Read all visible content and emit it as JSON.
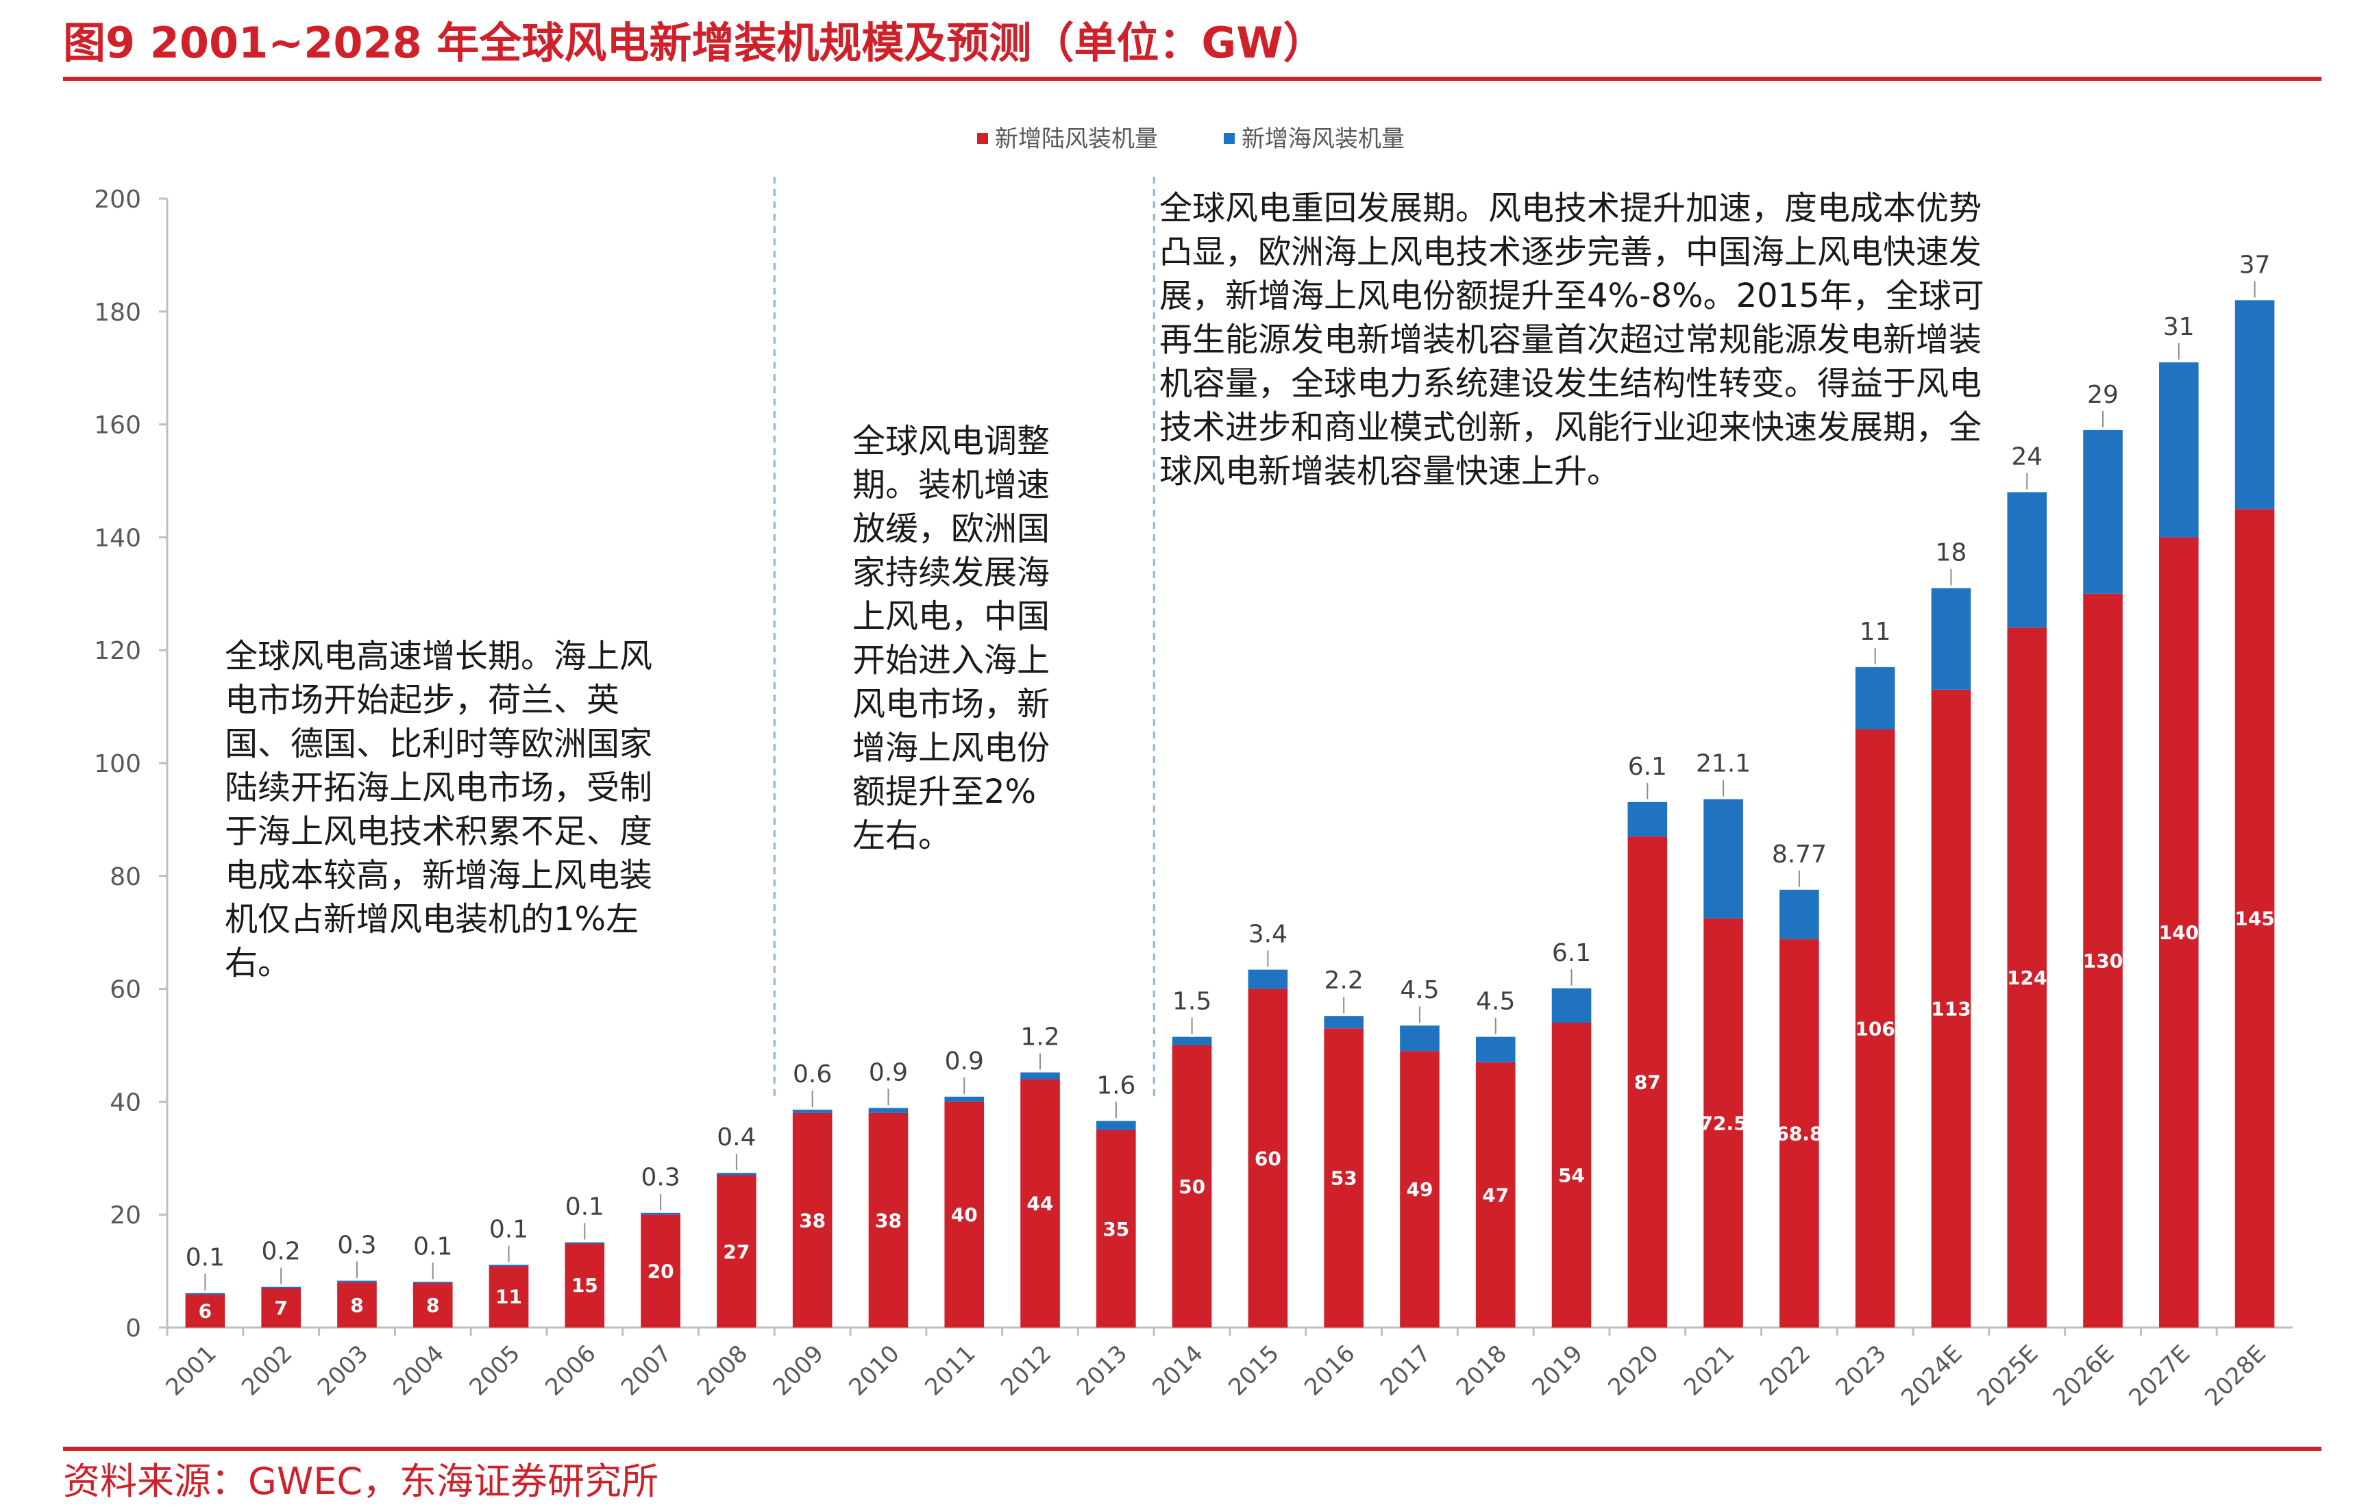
{
  "figure": {
    "title": "图9  2001~2028 年全球风电新增装机规模及预测（单位：GW）",
    "source": "资料来源：GWEC，东海证券研究所"
  },
  "colors": {
    "onshore": "#d0202a",
    "offshore": "#1f73c1",
    "title": "#d0202a",
    "axis": "#bfbfbf",
    "divider": "#8fb3d9"
  },
  "chart_data": {
    "type": "bar",
    "stacked": true,
    "categories": [
      "2001",
      "2002",
      "2003",
      "2004",
      "2005",
      "2006",
      "2007",
      "2008",
      "2009",
      "2010",
      "2011",
      "2012",
      "2013",
      "2014",
      "2015",
      "2016",
      "2017",
      "2018",
      "2019",
      "2020",
      "2021",
      "2022",
      "2023",
      "2024E",
      "2025E",
      "2026E",
      "2027E",
      "2028E"
    ],
    "series": [
      {
        "name": "新增陆风装机量",
        "values": [
          6,
          7,
          8,
          8,
          11,
          15,
          20,
          27,
          38,
          38,
          40,
          44,
          35,
          50,
          60,
          53,
          49,
          47,
          54,
          87,
          72.5,
          68.8,
          106,
          113,
          124,
          130,
          140,
          145
        ],
        "labels": [
          "6",
          "7",
          "8",
          "8",
          "11",
          "15",
          "20",
          "27",
          "38",
          "38",
          "40",
          "44",
          "35",
          "50",
          "60",
          "53",
          "49",
          "47",
          "54",
          "87",
          "72.5",
          "68.8",
          "106",
          "113",
          "124",
          "130",
          "140",
          "145"
        ]
      },
      {
        "name": "新增海风装机量",
        "values": [
          0.1,
          0.2,
          0.3,
          0.1,
          0.1,
          0.1,
          0.3,
          0.4,
          0.6,
          0.9,
          0.9,
          1.2,
          1.6,
          1.5,
          3.4,
          2.2,
          4.5,
          4.5,
          6.1,
          6.1,
          21.1,
          8.77,
          11,
          18,
          24,
          29,
          31,
          37
        ],
        "labels": [
          "0.1",
          "0.2",
          "0.3",
          "0.1",
          "0.1",
          "0.1",
          "0.3",
          "0.4",
          "0.6",
          "0.9",
          "0.9",
          "1.2",
          "1.6",
          "1.5",
          "3.4",
          "2.2",
          "4.5",
          "4.5",
          "6.1",
          "6.1",
          "21.1",
          "8.77",
          "11",
          "18",
          "24",
          "29",
          "31",
          "37"
        ]
      }
    ],
    "y_ticks": [
      "0",
      "20",
      "40",
      "60",
      "80",
      "100",
      "120",
      "140",
      "160",
      "180",
      "200"
    ],
    "ylim": [
      0,
      200
    ],
    "xlabel": "",
    "ylabel": "",
    "legend_position": "top-center",
    "grid": false,
    "period_dividers_after": [
      "2008",
      "2013"
    ],
    "annotations": [
      "全球风电高速增长期。海上风电市场开始起步，荷兰、英国、德国、比利时等欧洲国家陆续开拓海上风电市场，受制于海上风电技术积累不足、度电成本较高，新增海上风电装机仅占新增风电装机的1%左右。",
      "全球风电调整期。装机增速放缓，欧洲国家持续发展海上风电，中国开始进入海上风电市场，新增海上风电份额提升至2%左右。",
      "全球风电重回发展期。风电技术提升加速，度电成本优势凸显，欧洲海上风电技术逐步完善，中国海上风电快速发展，新增海上风电份额提升至4%-8%。2015年，全球可再生能源发电新增装机容量首次超过常规能源发电新增装机容量，全球电力系统建设发生结构性转变。得益于风电技术进步和商业模式创新，风能行业迎来快速发展期，全球风电新增装机容量快速上升。"
    ]
  }
}
